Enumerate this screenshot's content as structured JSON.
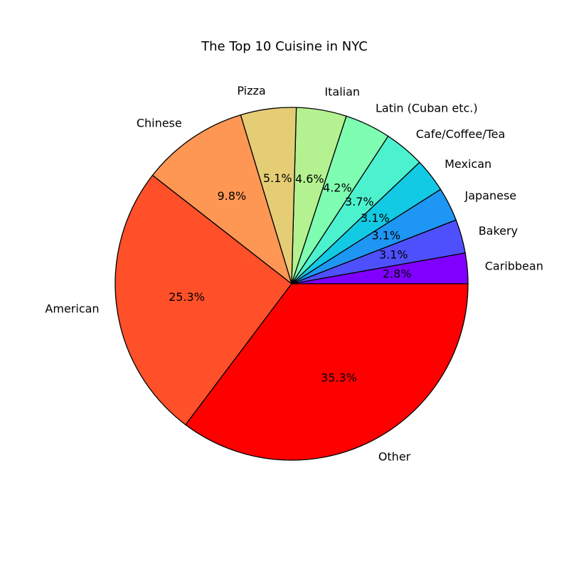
{
  "chart_data": {
    "type": "pie",
    "title": "The Top 10 Cuisine in NYC",
    "start_angle_deg": 0,
    "direction": "counterclockwise",
    "categories": [
      "Caribbean",
      "Bakery",
      "Japanese",
      "Mexican",
      "Cafe/Coffee/Tea",
      "Latin (Cuban etc.)",
      "Italian",
      "Pizza",
      "Chinese",
      "American",
      "Other"
    ],
    "values": [
      2.8,
      3.1,
      3.1,
      3.1,
      3.7,
      4.2,
      4.6,
      5.1,
      9.8,
      25.3,
      35.3
    ],
    "value_labels": [
      "2.8%",
      "3.1%",
      "3.1%",
      "3.1%",
      "3.7%",
      "4.2%",
      "4.6%",
      "5.1%",
      "9.8%",
      "25.3%",
      "35.3%"
    ],
    "colors": [
      "#8000ff",
      "#4f50fd",
      "#1e96f4",
      "#13cae4",
      "#4cf2ce",
      "#7ffeb2",
      "#b4f190",
      "#e5cd76",
      "#ff9754",
      "#ff5029",
      "#ff0000"
    ],
    "edge_color": "#000000",
    "legend": "none"
  }
}
